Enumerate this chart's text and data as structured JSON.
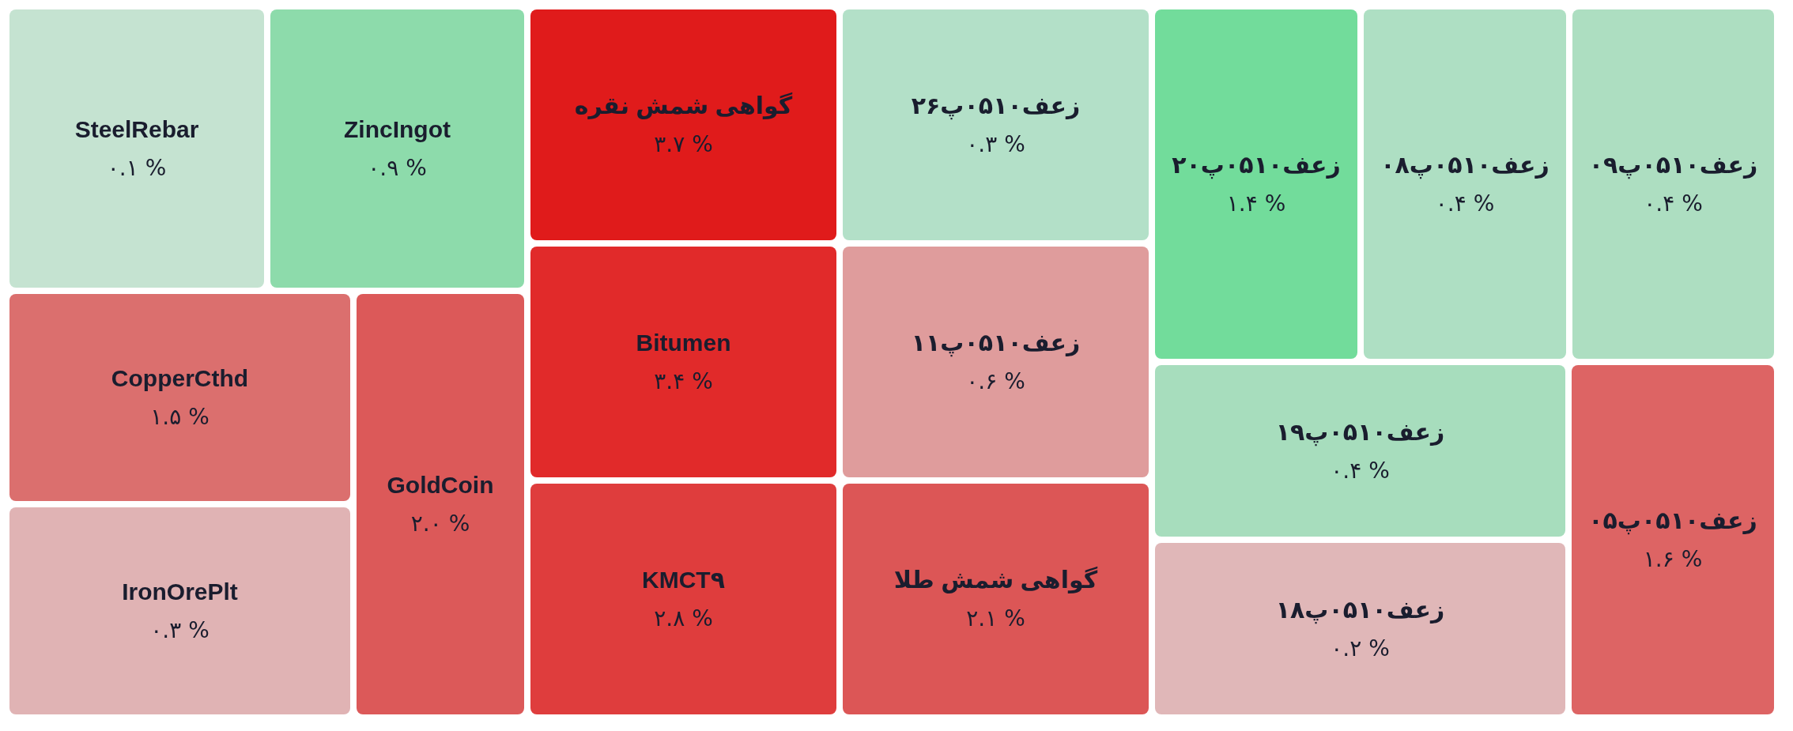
{
  "chart_data": {
    "type": "other",
    "categories": [
      "SteelRebar",
      "ZincIngot",
      "CopperCthd",
      "IronOrePlt",
      "GoldCoin",
      "گواهی شمش نقره",
      "Bitumen",
      "KMCT۹",
      "زعف۰۵۱۰پ۲۶",
      "زعف۰۵۱۰پ۱۱",
      "گواهی شمش طلا",
      "زعف۰۵۱۰پ۲۰",
      "زعف۰۵۱۰پ۰۸",
      "زعف۰۵۱۰پ۰۹",
      "زعف۰۵۱۰پ۱۹",
      "زعف۰۵۱۰پ۱۸",
      "زعف۰۵۱۰پ۰۵"
    ],
    "values": [
      0.1,
      0.9,
      1.5,
      0.3,
      2.0,
      3.7,
      3.4,
      2.8,
      0.3,
      0.6,
      2.1,
      1.4,
      0.4,
      0.4,
      0.4,
      0.2,
      1.6
    ],
    "value_labels": [
      "۰.۱ %",
      "۰.۹ %",
      "۱.۵ %",
      "۰.۳ %",
      "۲.۰ %",
      "۳.۷ %",
      "۳.۴ %",
      "۲.۸ %",
      "۰.۳ %",
      "۰.۶ %",
      "۲.۱ %",
      "۱.۴ %",
      "۰.۴ %",
      "۰.۴ %",
      "۰.۴ %",
      "۰.۲ %",
      "۱.۶ %"
    ],
    "colors": [
      "#c5e3d1",
      "#8ddbab",
      "#db6f6e",
      "#e0b3b4",
      "#dc5959",
      "#e01b1b",
      "#e12a2a",
      "#df3d3d",
      "#b3e0c8",
      "#df9c9c",
      "#dc5656",
      "#72dc9b",
      "#aedfc3",
      "#addec1",
      "#a7ddbd",
      "#e0b7b8",
      "#dd6464"
    ]
  }
}
